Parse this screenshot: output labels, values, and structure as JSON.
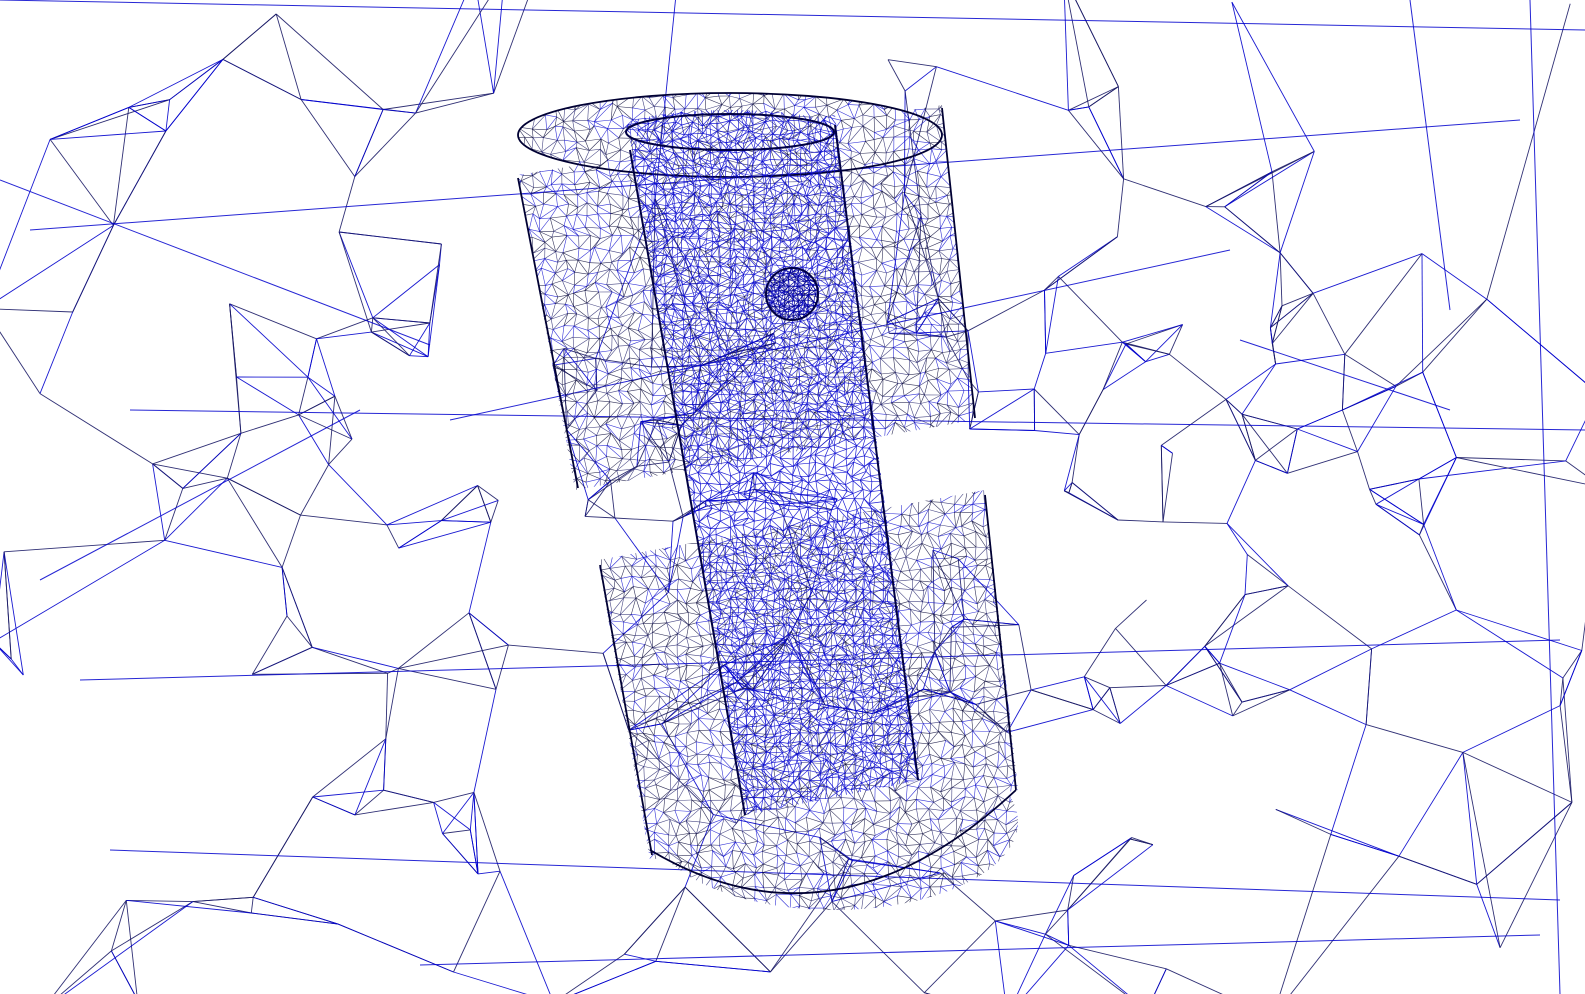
{
  "view": {
    "background_color": "#ffffff",
    "render_mode": "wireframe",
    "edge_colors": [
      "#0000cc",
      "#1a1a66",
      "#000033"
    ],
    "dense_mesh_color": "#0a0ad0"
  },
  "scene": {
    "objects": [
      {
        "name": "outer-domain-mesh",
        "kind": "coarse tetrahedral mesh"
      },
      {
        "name": "outer-cylinder",
        "kind": "fine surface mesh"
      },
      {
        "name": "inner-cylinder",
        "kind": "fine surface mesh"
      },
      {
        "name": "small-sphere",
        "kind": "fine surface mesh"
      }
    ]
  }
}
